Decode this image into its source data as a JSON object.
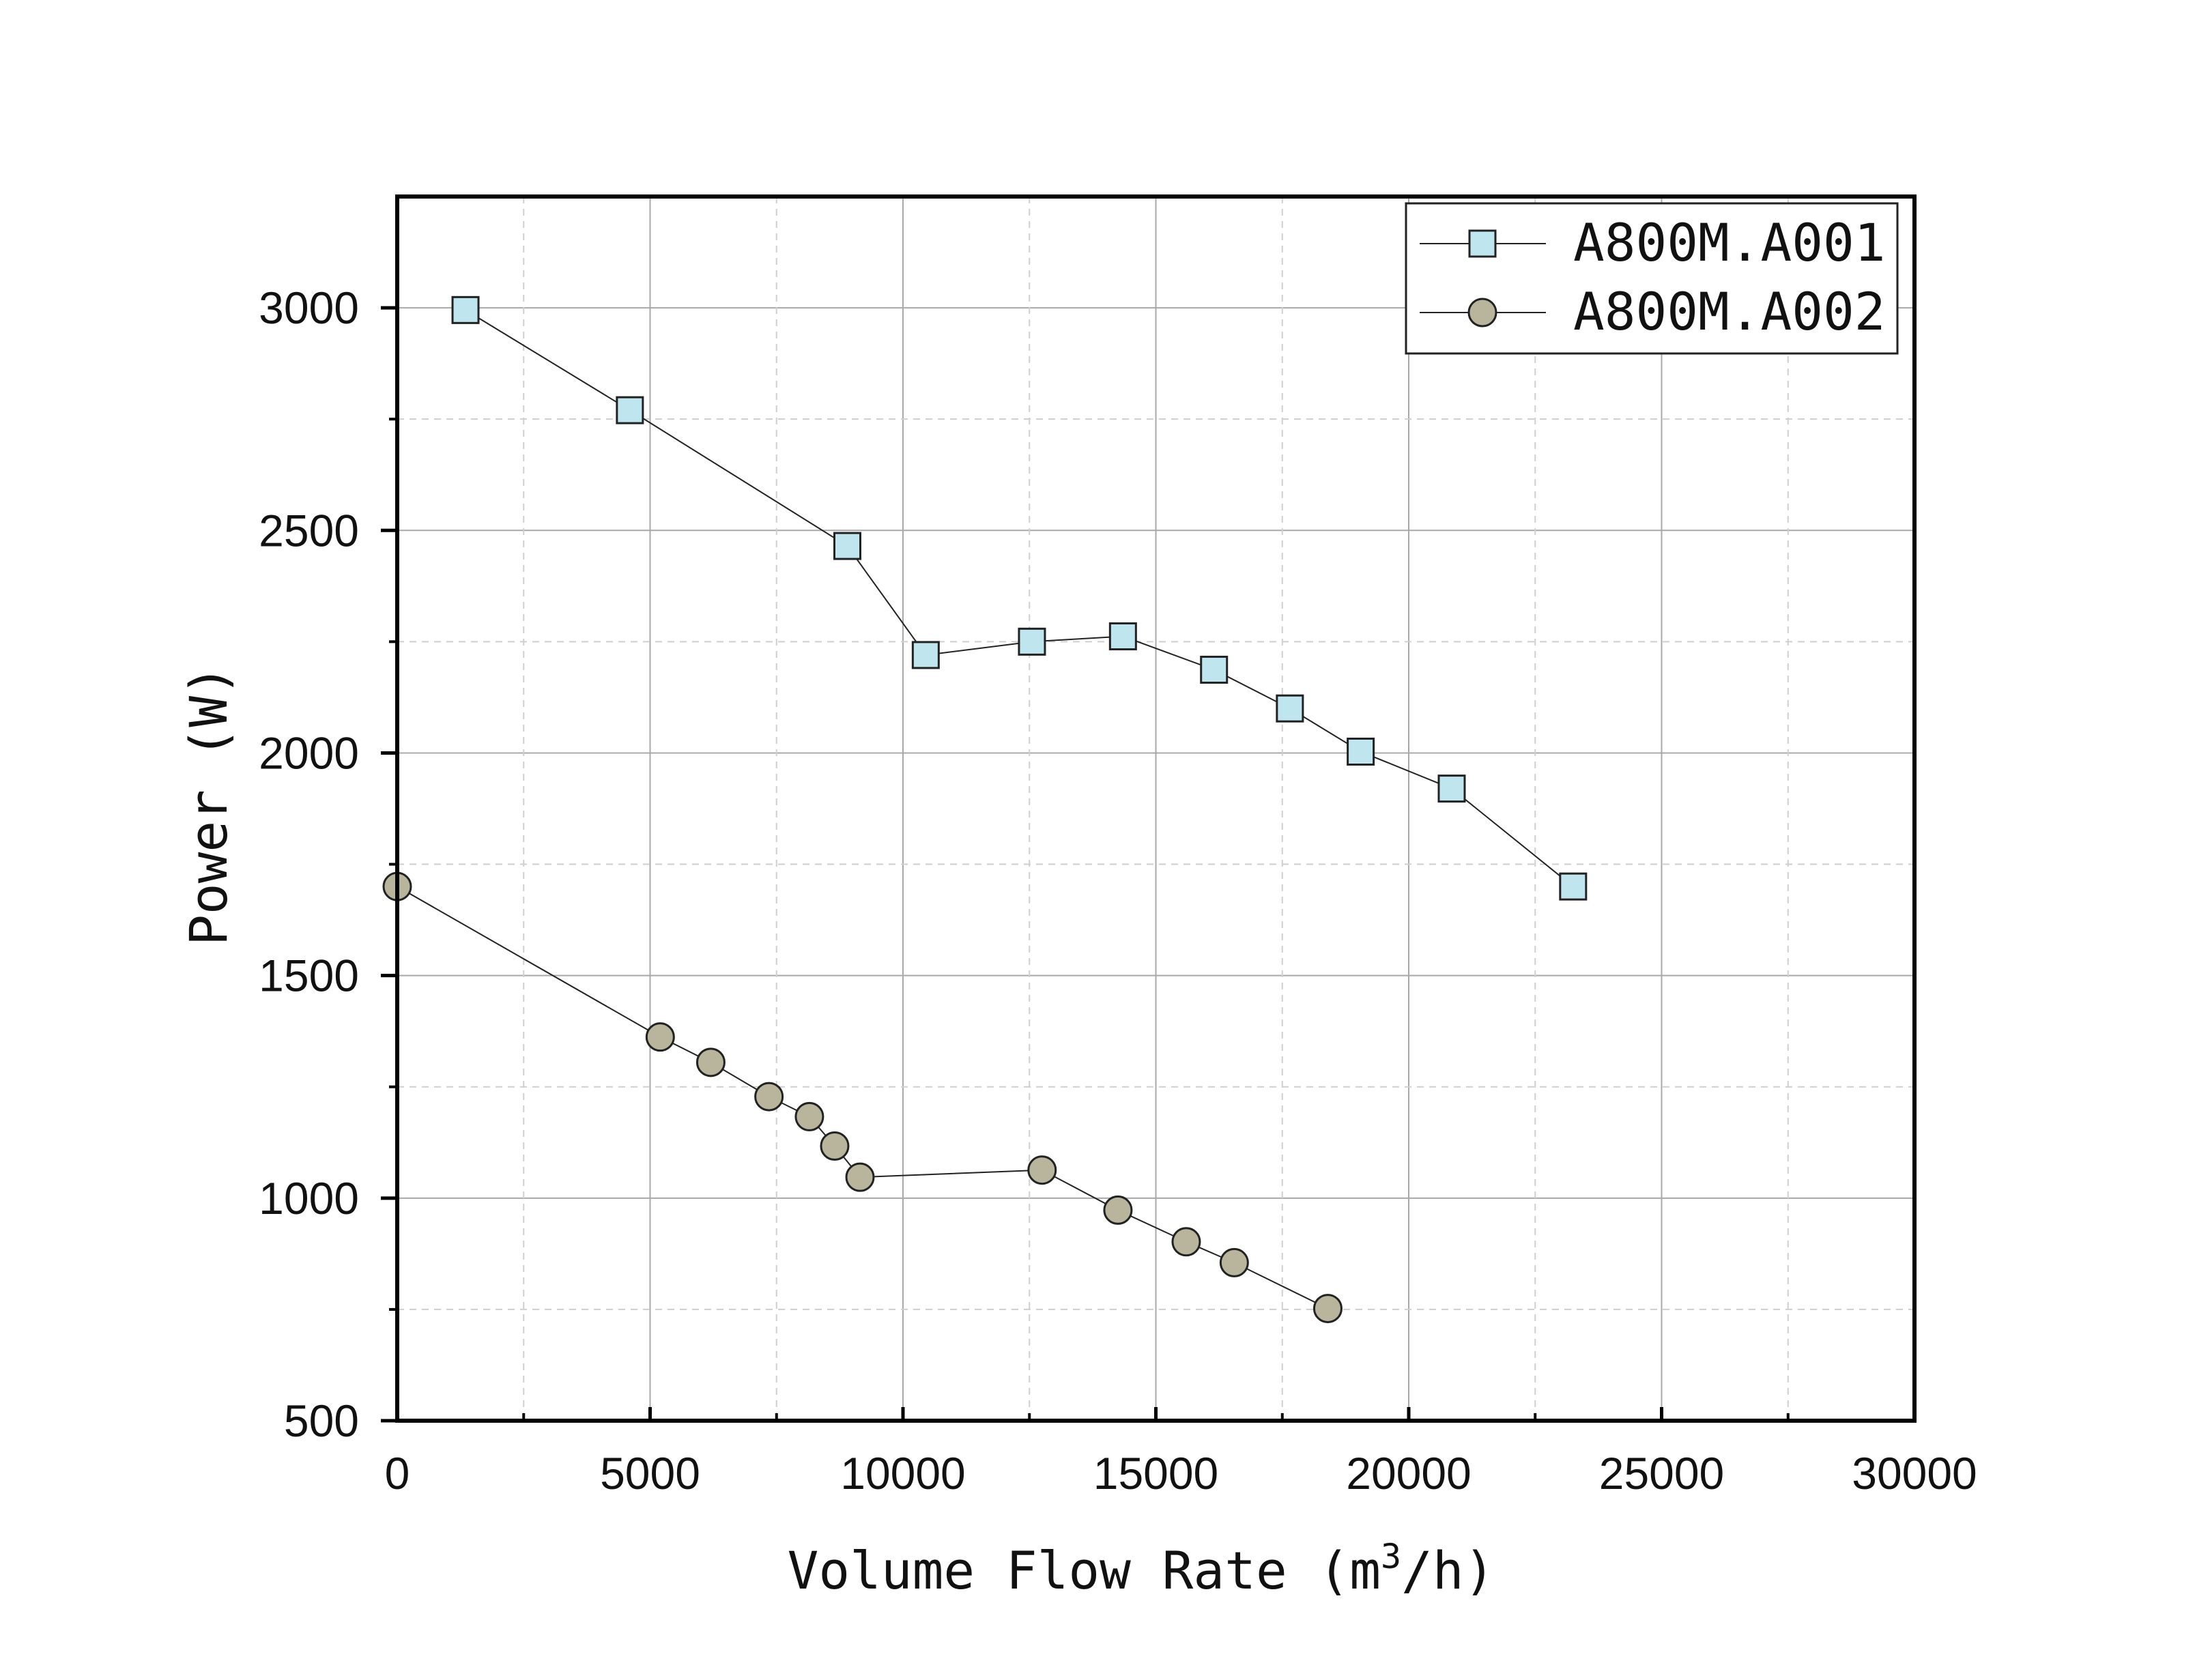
{
  "chart_data": {
    "type": "line",
    "title": "",
    "xlabel": "Volume Flow Rate (m",
    "xlabel_sup": "3",
    "xlabel_end": "/h)",
    "ylabel": "Power (W)",
    "xlim": [
      0,
      30000
    ],
    "ylim": [
      500,
      3250
    ],
    "x_ticks": [
      0,
      5000,
      10000,
      15000,
      20000,
      25000,
      30000
    ],
    "x_tick_labels": [
      "0",
      "5000",
      "10000",
      "15000",
      "20000",
      "25000",
      "30000"
    ],
    "x_minor_ticks": [
      2500,
      7500,
      12500,
      17500,
      22500,
      27500
    ],
    "y_ticks": [
      500,
      1000,
      1500,
      2000,
      2500,
      3000
    ],
    "y_tick_labels": [
      "500",
      "1000",
      "1500",
      "2000",
      "2500",
      "3000"
    ],
    "y_minor_ticks": [
      750,
      1250,
      1750,
      2250,
      2750
    ],
    "grid": true,
    "legend_position": "top-right",
    "series": [
      {
        "name": "A800M.A001",
        "marker": "square",
        "marker_color": "#bfe6ee",
        "x": [
          1350,
          4600,
          8900,
          10450,
          12550,
          14350,
          16150,
          17650,
          19050,
          20850,
          23250
        ],
        "y": [
          2995,
          2770,
          2465,
          2220,
          2250,
          2262,
          2187,
          2100,
          2003,
          1920,
          1700
        ]
      },
      {
        "name": "A800M.A002",
        "marker": "circle",
        "marker_color": "#b8b59c",
        "x": [
          0,
          5200,
          6200,
          7350,
          8150,
          8650,
          9150,
          12750,
          14250,
          15600,
          16550,
          18400
        ],
        "y": [
          1700,
          1362,
          1305,
          1228,
          1183,
          1117,
          1047,
          1063,
          973,
          902,
          855,
          752
        ]
      }
    ]
  }
}
